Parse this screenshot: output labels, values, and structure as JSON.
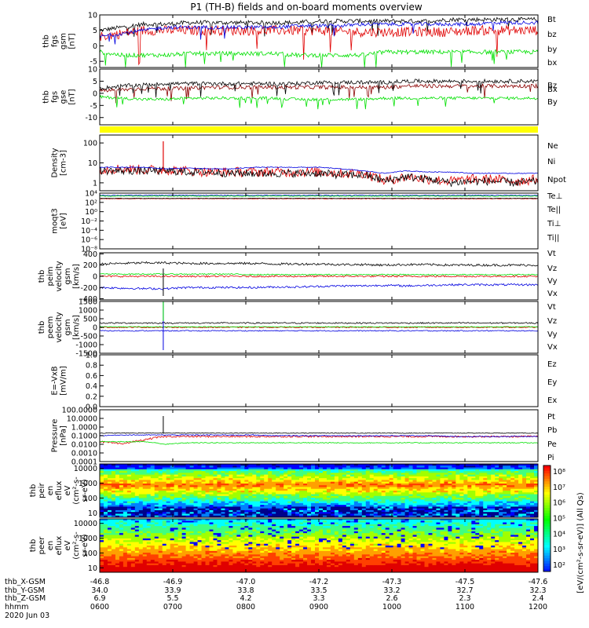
{
  "title": "P1 (TH-B) fields and on-board moments overview",
  "colors": {
    "black": "#000000",
    "red": "#e00000",
    "green": "#00e000",
    "blue": "#0000e0",
    "darkred": "#8b0000",
    "yellow": "#ffff00"
  },
  "chart_data": [
    {
      "type": "line",
      "id": "fgs",
      "ylabel": [
        "thb",
        "fgs",
        "gsm",
        "[nT]"
      ],
      "yticks": [
        "10",
        "5",
        "0",
        "-5"
      ],
      "ylim": [
        -7,
        10
      ],
      "series": [
        {
          "name": "Bt",
          "color": "black",
          "base": [
            5,
            6,
            7,
            7,
            7.5,
            7.5,
            7.5,
            7.5,
            7.5,
            7.5,
            8,
            8,
            8,
            8,
            8,
            8,
            8.5,
            8.5,
            8.5,
            8.5,
            8.5
          ],
          "noise": 0.7
        },
        {
          "name": "bz",
          "color": "red",
          "base": [
            3,
            4,
            5,
            5,
            5,
            5,
            5,
            5,
            5,
            5,
            5,
            4.5,
            4.5,
            4.5,
            4.5,
            4.5,
            4.5,
            5,
            5,
            5,
            5
          ],
          "noise": 1.6
        },
        {
          "name": "by",
          "color": "green",
          "base": [
            -2,
            -3,
            -3,
            -3,
            -2.5,
            -2.5,
            -2.5,
            -2.5,
            -2.5,
            -3,
            -3,
            -3,
            -3,
            -2,
            -2,
            -2,
            -2,
            -2,
            -2,
            -2,
            -2
          ],
          "noise": 0.7
        },
        {
          "name": "bx",
          "color": "blue",
          "base": [
            3,
            4,
            5,
            6,
            6,
            6,
            6,
            6,
            6,
            6.5,
            6.5,
            6.5,
            7,
            7,
            7,
            7,
            7,
            7,
            7.5,
            7.5,
            7.5
          ],
          "noise": 0.6
        }
      ]
    },
    {
      "type": "line",
      "id": "fgs-dsl",
      "ylabel": [
        "thb",
        "fgs",
        "gse",
        "[nT]"
      ],
      "yticks": [
        "10",
        "5",
        "0",
        "-5",
        "-10"
      ],
      "ylim": [
        -13,
        10
      ],
      "series": [
        {
          "name": "Bz",
          "color": "darkred",
          "base": [
            1,
            1.5,
            2,
            2,
            2,
            2.5,
            2.5,
            2.5,
            2.5,
            2.5,
            2.5,
            2.5,
            2.5,
            2.5,
            3,
            3,
            3,
            3,
            3,
            3,
            3
          ],
          "noise": 0.8
        },
        {
          "name": "Bx",
          "color": "black",
          "base": [
            2,
            3,
            3.5,
            4,
            4,
            4,
            4,
            4,
            4,
            4,
            4.5,
            4.5,
            4.5,
            4.5,
            5,
            5,
            5,
            5,
            5,
            5,
            5
          ],
          "noise": 0.8
        },
        {
          "name": "By",
          "color": "green",
          "base": [
            -1.5,
            -2,
            -2.5,
            -2.5,
            -2,
            -2,
            -2,
            -2,
            -2,
            -2.5,
            -2.5,
            -2.5,
            -2.5,
            -2,
            -2,
            -2,
            -2,
            -2,
            -2,
            -2,
            -2
          ],
          "noise": 0.6
        }
      ]
    },
    {
      "type": "line",
      "id": "density",
      "ylabel": [
        "Density",
        "[cm-3]"
      ],
      "yticks": [
        "100",
        "10",
        "1"
      ],
      "ylim": [
        0.4,
        250
      ],
      "log": true,
      "series": [
        {
          "name": "Ne",
          "color": "red",
          "base": [
            5,
            5,
            4.5,
            4.5,
            4,
            3.5,
            3.5,
            3.5,
            3.5,
            3.5,
            3.5,
            3,
            3,
            1.2,
            2,
            1.5,
            1.2,
            1.5,
            1.5,
            1.2,
            1.5
          ],
          "noise": 0.25
        },
        {
          "name": "Ni",
          "color": "black",
          "base": [
            4,
            4,
            4,
            4,
            3.5,
            3.5,
            3,
            3,
            3,
            3,
            3,
            2.5,
            2.5,
            1.2,
            2,
            1.5,
            1,
            1.2,
            1.2,
            1,
            1.2
          ],
          "noise": 0.2
        },
        {
          "name": "Npot",
          "color": "blue",
          "base": [
            6,
            6,
            6,
            5,
            5.5,
            5,
            5,
            6,
            6,
            6,
            6,
            5,
            4,
            3,
            4,
            3.5,
            3.5,
            3,
            3,
            3,
            3
          ],
          "noise": 0.02
        }
      ]
    },
    {
      "type": "line",
      "id": "moms",
      "ylabel": [
        "moqt3",
        "[eV]"
      ],
      "yticks": [
        "10⁴",
        "10²",
        "10⁰",
        "10⁻²",
        "10⁻⁴",
        "10⁻⁶",
        "10⁻⁸"
      ],
      "ylim": [
        1e-09,
        10000.0
      ],
      "log": true,
      "series": [
        {
          "name": "Te⊥",
          "color": "red",
          "base": [
            500,
            500,
            500,
            500,
            500,
            500,
            500,
            500,
            500,
            500,
            500,
            500,
            500,
            500,
            500,
            500,
            500,
            500,
            500,
            500,
            500
          ],
          "noise": 0.05
        },
        {
          "name": "Te||",
          "color": "black",
          "base": [
            600,
            600,
            600,
            600,
            600,
            600,
            600,
            600,
            600,
            600,
            600,
            600,
            600,
            600,
            600,
            600,
            600,
            600,
            600,
            600,
            600
          ],
          "noise": 0.05
        },
        {
          "name": "Ti⊥",
          "color": "blue",
          "base": [
            3000,
            3000,
            3000,
            3000,
            3000,
            3000,
            3000,
            3000,
            3000,
            3000,
            3000,
            3000,
            3000,
            3000,
            3000,
            3000,
            3000,
            3000,
            3000,
            3000,
            3000
          ],
          "noise": 0.08
        },
        {
          "name": "Ti||",
          "color": "green",
          "base": [
            2000,
            2000,
            2000,
            2000,
            2000,
            2000,
            2000,
            2000,
            2000,
            2000,
            2000,
            2000,
            2000,
            2000,
            2000,
            2000,
            2000,
            2000,
            2000,
            2000,
            2000
          ],
          "noise": 0.08
        }
      ]
    },
    {
      "type": "line",
      "id": "peim",
      "ylabel": [
        "thb",
        "peim",
        "velocity",
        "gsm",
        "[km/s]"
      ],
      "yticks": [
        "400",
        "200",
        "0",
        "-200",
        "-400"
      ],
      "ylim": [
        -420,
        420
      ],
      "series": [
        {
          "name": "Vt",
          "color": "black",
          "base": [
            220,
            230,
            240,
            240,
            230,
            230,
            230,
            230,
            220,
            220,
            220,
            210,
            210,
            200,
            210,
            210,
            200,
            200,
            200,
            200,
            200
          ],
          "noise": 20
        },
        {
          "name": "Vz",
          "color": "red",
          "base": [
            0,
            0,
            0,
            0,
            0,
            0,
            0,
            0,
            0,
            0,
            0,
            0,
            0,
            0,
            0,
            0,
            0,
            0,
            0,
            0,
            0
          ],
          "noise": 15
        },
        {
          "name": "Vy",
          "color": "green",
          "base": [
            40,
            40,
            40,
            40,
            40,
            40,
            40,
            30,
            30,
            30,
            30,
            30,
            30,
            30,
            30,
            30,
            30,
            30,
            30,
            30,
            30
          ],
          "noise": 10
        },
        {
          "name": "Vx",
          "color": "blue",
          "base": [
            -200,
            -210,
            -220,
            -220,
            -200,
            -200,
            -200,
            -200,
            -190,
            -190,
            -180,
            -170,
            -170,
            -160,
            -170,
            -160,
            -150,
            -150,
            -150,
            -150,
            -150
          ],
          "noise": 18
        }
      ]
    },
    {
      "type": "line",
      "id": "peem",
      "ylabel": [
        "thb",
        "peem",
        "velocity",
        "gsm",
        "[km/s]"
      ],
      "yticks": [
        "1500",
        "1000",
        "500",
        "0",
        "-500",
        "-1000",
        "-1500"
      ],
      "ylim": [
        -1500,
        1500
      ],
      "series": [
        {
          "name": "Vt",
          "color": "black",
          "base": [
            250,
            250,
            250,
            250,
            250,
            250,
            250,
            250,
            250,
            250,
            250,
            250,
            250,
            250,
            250,
            250,
            250,
            250,
            250,
            250,
            250
          ],
          "noise": 40
        },
        {
          "name": "Vz",
          "color": "red",
          "base": [
            0,
            0,
            0,
            0,
            0,
            0,
            0,
            0,
            0,
            0,
            0,
            0,
            0,
            0,
            0,
            0,
            0,
            0,
            0,
            0,
            0
          ],
          "noise": 30
        },
        {
          "name": "Vy",
          "color": "green",
          "base": [
            30,
            30,
            30,
            30,
            30,
            30,
            30,
            30,
            30,
            30,
            30,
            30,
            30,
            30,
            30,
            30,
            30,
            30,
            30,
            30,
            30
          ],
          "noise": 20
        },
        {
          "name": "Vx",
          "color": "blue",
          "base": [
            -200,
            -200,
            -200,
            -200,
            -200,
            -200,
            -200,
            -200,
            -200,
            -200,
            -200,
            -200,
            -200,
            -200,
            -200,
            -200,
            -200,
            -200,
            -200,
            -200,
            -200
          ],
          "noise": 30
        }
      ]
    },
    {
      "type": "line",
      "id": "efield",
      "ylabel": [
        "E=-VxB",
        "[mV/m]"
      ],
      "yticks": [
        "1.0",
        "0.8",
        "0.6",
        "0.4",
        "0.2",
        "0.0"
      ],
      "ylim": [
        0,
        1
      ],
      "series": [
        {
          "name": "Ez",
          "color": "red"
        },
        {
          "name": "Ey",
          "color": "green"
        },
        {
          "name": "Ex",
          "color": "blue"
        }
      ]
    },
    {
      "type": "line",
      "id": "pressure",
      "ylabel": [
        "Pressure",
        "[nPa]"
      ],
      "yticks": [
        "100.0000",
        "10.0000",
        "1.0000",
        "0.1000",
        "0.0100",
        "0.0010",
        "0.0001"
      ],
      "ylim": [
        0.0001,
        100
      ],
      "log": true,
      "series": [
        {
          "name": "Pt",
          "color": "black",
          "base": [
            0.2,
            0.2,
            0.2,
            0.2,
            0.2,
            0.2,
            0.2,
            0.2,
            0.2,
            0.2,
            0.2,
            0.2,
            0.2,
            0.2,
            0.2,
            0.2,
            0.2,
            0.2,
            0.2,
            0.2,
            0.2
          ],
          "noise": 0.04
        },
        {
          "name": "Pb",
          "color": "red",
          "base": [
            0.02,
            0.01,
            0.03,
            0.08,
            0.08,
            0.08,
            0.08,
            0.08,
            0.08,
            0.08,
            0.08,
            0.08,
            0.08,
            0.08,
            0.08,
            0.08,
            0.08,
            0.08,
            0.08,
            0.08,
            0.08
          ],
          "noise": 0.1
        },
        {
          "name": "Pe",
          "color": "green",
          "base": [
            0.02,
            0.02,
            0.02,
            0.01,
            0.015,
            0.015,
            0.015,
            0.015,
            0.015,
            0.015,
            0.015,
            0.015,
            0.015,
            0.015,
            0.015,
            0.015,
            0.015,
            0.015,
            0.015,
            0.015,
            0.015
          ],
          "noise": 0.05
        },
        {
          "name": "Pi",
          "color": "blue",
          "base": [
            0.1,
            0.12,
            0.12,
            0.12,
            0.12,
            0.12,
            0.12,
            0.12,
            0.1,
            0.1,
            0.1,
            0.1,
            0.1,
            0.1,
            0.1,
            0.1,
            0.08,
            0.08,
            0.08,
            0.08,
            0.08
          ],
          "noise": 0.05
        }
      ]
    },
    {
      "type": "heatmap",
      "id": "peir",
      "ylabel": [
        "thb",
        "peir",
        "en",
        "eflux",
        "eV",
        "(cm²-s-",
        "sr-eV)"
      ],
      "yticks": [
        "10000",
        "1000",
        "100",
        "10"
      ],
      "ylim": [
        5,
        20000
      ],
      "log": true
    },
    {
      "type": "heatmap",
      "id": "peer",
      "ylabel": [
        "thb",
        "peer",
        "en",
        "eflux",
        "eV",
        "(cm²-s-",
        "sr-eV)"
      ],
      "yticks": [
        "10000",
        "1000",
        "100",
        "10"
      ],
      "ylim": [
        5,
        20000
      ],
      "log": true
    }
  ],
  "colorbar": {
    "ticks": [
      "10⁸",
      "10⁷",
      "10⁶",
      "10⁵",
      "10⁴",
      "10³",
      "10²"
    ],
    "label": "[eV/(cm²-s-sr-eV)] (All Qs)"
  },
  "xaxis": {
    "rows": [
      {
        "label": "thb_X-GSM",
        "values": [
          "-46.8",
          "-46.9",
          "-47.0",
          "-47.2",
          "-47.3",
          "-47.5",
          "-47.6"
        ]
      },
      {
        "label": "thb_Y-GSM",
        "values": [
          "34.0",
          "33.9",
          "33.8",
          "33.5",
          "33.2",
          "32.7",
          "32.3"
        ]
      },
      {
        "label": "thb_Z-GSM",
        "values": [
          "6.9",
          "5.5",
          "4.2",
          "3.3",
          "2.6",
          "2.3",
          "2.4"
        ]
      },
      {
        "label": "hhmm",
        "values": [
          "0600",
          "0700",
          "0800",
          "0900",
          "1000",
          "1100",
          "1200"
        ]
      }
    ],
    "date": "2020 Jun 03"
  }
}
